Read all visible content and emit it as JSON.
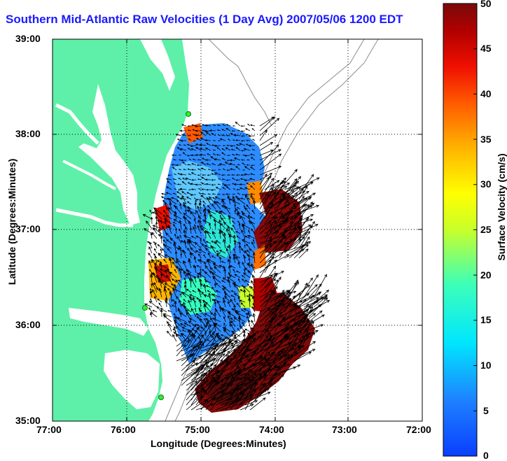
{
  "title": "Southern Mid-Atlantic Raw Velocities (1 Day Avg) 2007/05/06 1200 EDT",
  "xlabel": "Longitude (Degrees:Minutes)",
  "ylabel": "Latitude (Degrees:Minutes)",
  "colorbar_label": "Surface Velocity (cm/s)",
  "x_ticks": [
    "77:00",
    "76:00",
    "75:00",
    "74:00",
    "73:00",
    "72:00"
  ],
  "y_ticks": [
    "39:00",
    "38:00",
    "37:00",
    "36:00",
    "35:00"
  ],
  "colorbar_ticks": [
    "50",
    "45",
    "40",
    "35",
    "30",
    "25",
    "20",
    "15",
    "10",
    "5",
    "0"
  ],
  "colors": {
    "land": "#5ef0a8",
    "water": "#ffffff",
    "title": "#1a1aff",
    "vector": "#000000",
    "bathymetry": "#8c8c8c",
    "station": "#33ee33"
  },
  "chart_data": {
    "type": "heatmap",
    "x_range_deg_west": [
      77,
      72
    ],
    "y_range_deg_north": [
      35,
      39
    ],
    "color_range_cm_s": [
      0,
      50
    ],
    "grid": true,
    "colormap": "jet"
  }
}
